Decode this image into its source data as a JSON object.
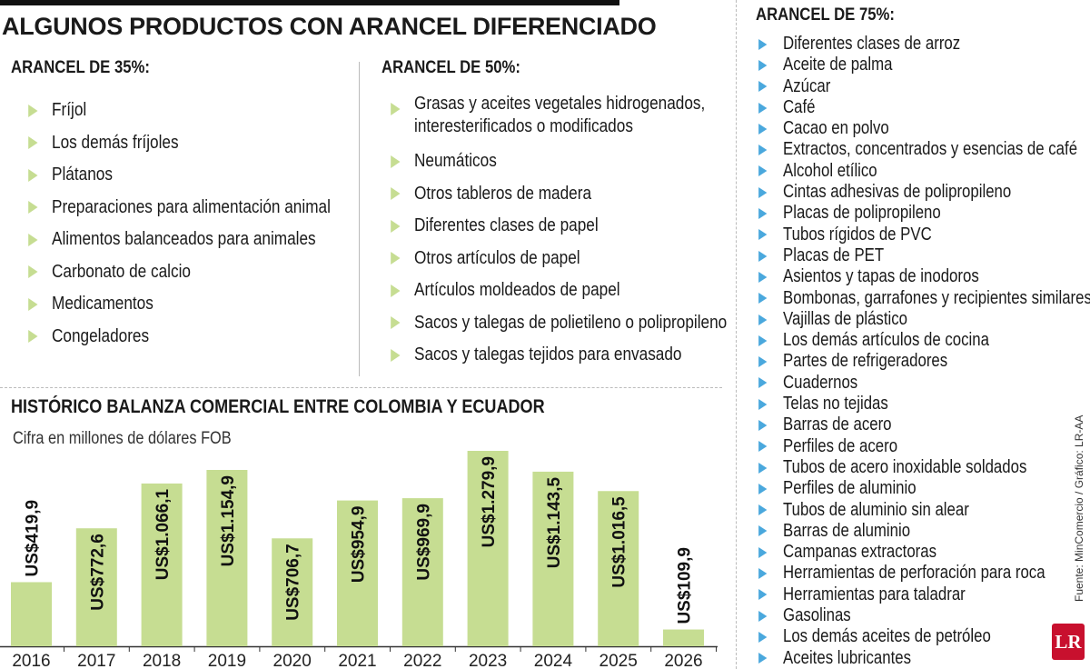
{
  "title": "ALGUNOS PRODUCTOS CON ARANCEL DIFERENCIADO",
  "arancel35": {
    "title": "ARANCEL DE 35%:",
    "items": [
      "Fríjol",
      "Los demás fríjoles",
      "Plátanos",
      "Preparaciones para alimentación animal",
      "Alimentos balanceados para animales",
      "Carbonato de calcio",
      "Medicamentos",
      "Congeladores"
    ]
  },
  "arancel50": {
    "title": "ARANCEL DE 50%:",
    "item1_line1": "Grasas y aceites vegetales hidrogenados,",
    "item1_line2": "interesterificados o modificados",
    "items": [
      "Neumáticos",
      "Otros tableros de madera",
      "Diferentes clases de papel",
      "Otros artículos de papel",
      "Artículos moldeados de papel",
      "Sacos y talegas de polietileno o polipropileno",
      "Sacos y talegas tejidos para envasado"
    ]
  },
  "arancel75": {
    "title": "ARANCEL DE 75%:",
    "items": [
      "Diferentes clases de arroz",
      "Aceite de palma",
      "Azúcar",
      "Café",
      "Cacao en polvo",
      "Extractos, concentrados y esencias de café",
      "Alcohol etílico",
      "Cintas adhesivas de polipropileno",
      "Placas de polipropileno",
      "Tubos rígidos de PVC",
      "Placas de PET",
      "Asientos y tapas de inodoros",
      "Bombonas, garrafones y recipientes similares",
      "Vajillas de plástico",
      "Los demás artículos de cocina",
      "Partes de refrigeradores",
      "Cuadernos",
      "Telas no tejidas",
      "Barras de acero",
      "Perfiles de acero",
      "Tubos de acero inoxidable soldados",
      "Perfiles de aluminio",
      "Tubos de aluminio sin alear",
      "Barras de aluminio",
      "Campanas extractoras",
      "Herramientas de perforación para roca",
      "Herramientas para taladrar",
      "Gasolinas",
      "Los demás aceites de petróleo",
      "Aceites lubricantes"
    ]
  },
  "chart_data": {
    "type": "bar",
    "title": "HISTÓRICO BALANZA COMERCIAL ENTRE COLOMBIA Y ECUADOR",
    "subtitle": "Cifra en millones de dólares FOB",
    "categories": [
      "2016",
      "2017",
      "2018",
      "2019",
      "2020",
      "2021",
      "2022",
      "2023",
      "2024",
      "2025",
      "2026"
    ],
    "values": [
      419.9,
      772.6,
      1066.1,
      1154.9,
      706.7,
      954.9,
      969.9,
      1279.9,
      1143.5,
      1016.5,
      109.9
    ],
    "labels": [
      "US$419,9",
      "US$772,6",
      "US$1.066,1",
      "US$1.154,9",
      "US$706,7",
      "US$954,9",
      "US$969,9",
      "US$1.279,9",
      "US$1.143,5",
      "US$1.016,5",
      "US$109,9"
    ],
    "ylim": [
      0,
      1279.9
    ],
    "bar_color": "#c6dd92",
    "grid": false
  },
  "source": "Fuente: MinComercio / Gráfico: LR-AA",
  "logo": "LR"
}
